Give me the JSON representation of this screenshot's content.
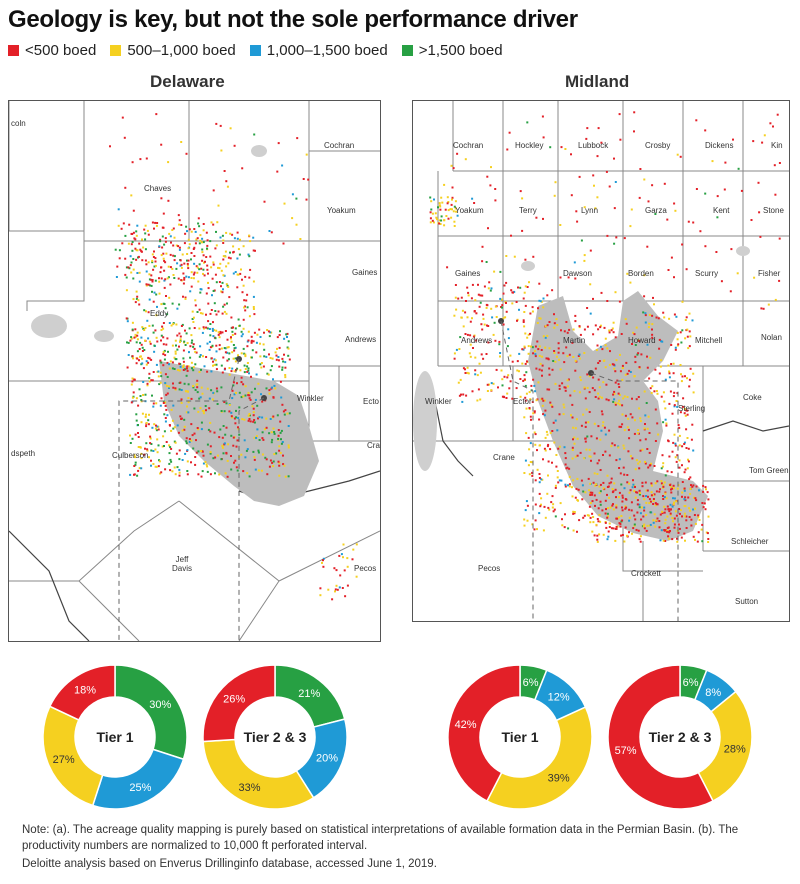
{
  "title": "Geology is key, but not the sole performance driver",
  "legend": [
    {
      "label": "<500 boed",
      "color": "#e32028"
    },
    {
      "label": "500–1,000 boed",
      "color": "#f5d020"
    },
    {
      "label": "1,000–1,500 boed",
      "color": "#1f9ad6"
    },
    {
      "label": ">1,500 boed",
      "color": "#27a043"
    }
  ],
  "maps": {
    "delaware": {
      "title": "Delaware",
      "counties": [
        "coln",
        "Chaves",
        "Cochran",
        "Yoakum",
        "Gaines",
        "Eddy",
        "Andrews",
        "Winkler",
        "Ecto",
        "Culberson",
        "dspeth",
        "Cran",
        "Jeff Davis",
        "Pecos"
      ]
    },
    "midland": {
      "title": "Midland",
      "counties": [
        "Cochran",
        "Hockley",
        "Lubbock",
        "Crosby",
        "Dickens",
        "Kin",
        "Yoakum",
        "Terry",
        "Lynn",
        "Garza",
        "Kent",
        "Stone",
        "Gaines",
        "Dawson",
        "Borden",
        "Scurry",
        "Fisher",
        "Andrews",
        "Martin",
        "Howard",
        "Mitchell",
        "Nolan",
        "Winkler",
        "Ector",
        "Sterling",
        "Coke",
        "Crane",
        "Tom Green",
        "Schleicher",
        "Pecos",
        "Crockett",
        "Sutton"
      ]
    }
  },
  "chart_data": [
    {
      "type": "pie",
      "title": "Tier 1",
      "region": "Delaware",
      "labels": [
        "<500 boed",
        "500–1,000 boed",
        "1,000–1,500 boed",
        ">1,500 boed"
      ],
      "values": [
        18,
        27,
        25,
        30
      ],
      "value_labels": [
        "18%",
        "27%",
        "25%",
        "30%"
      ]
    },
    {
      "type": "pie",
      "title": "Tier 2 & 3",
      "region": "Delaware",
      "labels": [
        "<500 boed",
        "500–1,000 boed",
        "1,000–1,500 boed",
        ">1,500 boed"
      ],
      "values": [
        26,
        33,
        20,
        21
      ],
      "value_labels": [
        "26%",
        "33%",
        "20%",
        "21%"
      ]
    },
    {
      "type": "pie",
      "title": "Tier 1",
      "region": "Midland",
      "labels": [
        "<500 boed",
        "500–1,000 boed",
        "1,000–1,500 boed",
        ">1,500 boed"
      ],
      "values": [
        42,
        39,
        12,
        6
      ],
      "value_labels": [
        "42%",
        "39%",
        "12%",
        "6%"
      ]
    },
    {
      "type": "pie",
      "title": "Tier 2 & 3",
      "region": "Midland",
      "labels": [
        "<500 boed",
        "500–1,000 boed",
        "1,000–1,500 boed",
        ">1,500 boed"
      ],
      "values": [
        57,
        28,
        8,
        6
      ],
      "value_labels": [
        "57%",
        "28%",
        "8%",
        "6%"
      ]
    }
  ],
  "notes": {
    "note": "Note: (a). The acreage quality mapping is purely based on statistical interpretations of available formation data in the Permian Basin. (b). The productivity numbers are normalized to 10,000 ft perforated interval.",
    "source": "Deloitte analysis based on Enverus Drillinginfo database, accessed June 1, 2019."
  }
}
